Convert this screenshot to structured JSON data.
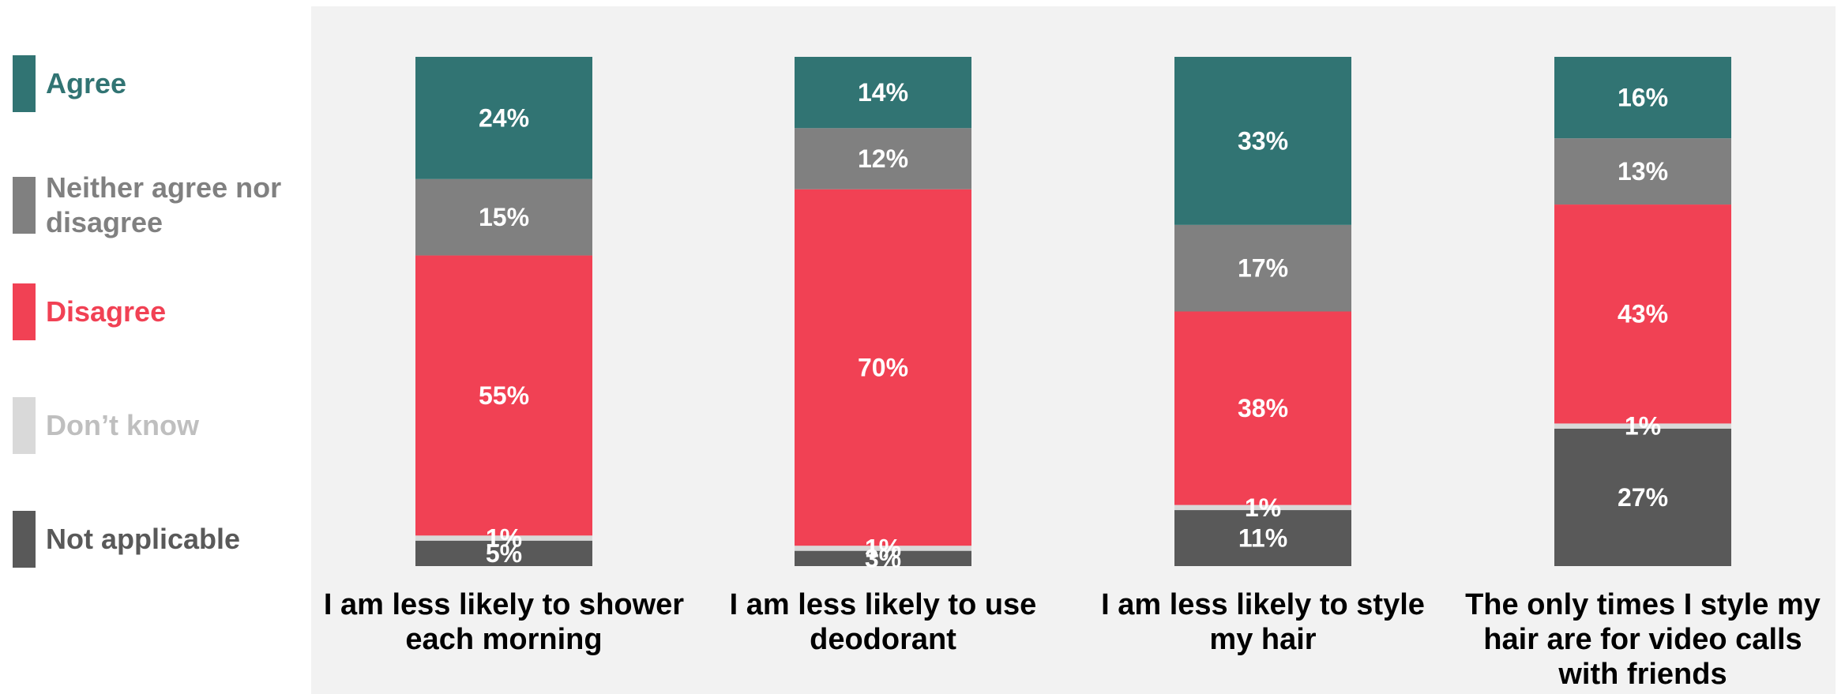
{
  "chart_data": {
    "type": "bar",
    "stacked": true,
    "categories": [
      [
        "I am less likely to shower",
        "each morning"
      ],
      [
        "I am less likely to use",
        "deodorant"
      ],
      [
        "I am less likely to style",
        "my hair"
      ],
      [
        "The only times I style my",
        "hair are for video calls",
        "with friends"
      ]
    ],
    "series": [
      {
        "name": "Not applicable",
        "color": "#595959",
        "values": [
          5,
          3,
          11,
          27
        ],
        "labels": [
          "5%",
          "3%",
          "11%",
          "27%"
        ]
      },
      {
        "name": "Don’t know",
        "color": "#d9d9d9",
        "values": [
          1,
          1,
          1,
          1
        ],
        "labels": [
          "1%",
          "1%",
          "1%",
          "1%"
        ]
      },
      {
        "name": "Disagree",
        "color": "#f14154",
        "values": [
          55,
          70,
          38,
          43
        ],
        "labels": [
          "55%",
          "70%",
          "38%",
          "43%"
        ]
      },
      {
        "name": "Neither agree nor disagree",
        "color": "#808080",
        "values": [
          15,
          12,
          17,
          13
        ],
        "labels": [
          "15%",
          "12%",
          "17%",
          "13%"
        ]
      },
      {
        "name": "Agree",
        "color": "#317473",
        "values": [
          24,
          14,
          33,
          16
        ],
        "labels": [
          "24%",
          "14%",
          "33%",
          "16%"
        ]
      }
    ],
    "ylim": [
      0,
      100
    ],
    "legend_position": "left"
  },
  "legend": [
    {
      "name": "Agree",
      "color": "#317473",
      "text_color": "#317473"
    },
    {
      "name": "Neither agree nor disagree",
      "color": "#808080",
      "text_color": "#808080"
    },
    {
      "name": "Disagree",
      "color": "#f14154",
      "text_color": "#f14154"
    },
    {
      "name": "Don’t know",
      "color": "#d9d9d9",
      "text_color": "#bfbfbf"
    },
    {
      "name": "Not applicable",
      "color": "#595959",
      "text_color": "#595959"
    }
  ],
  "colors": {
    "plot_background": "#f2f2f2"
  }
}
